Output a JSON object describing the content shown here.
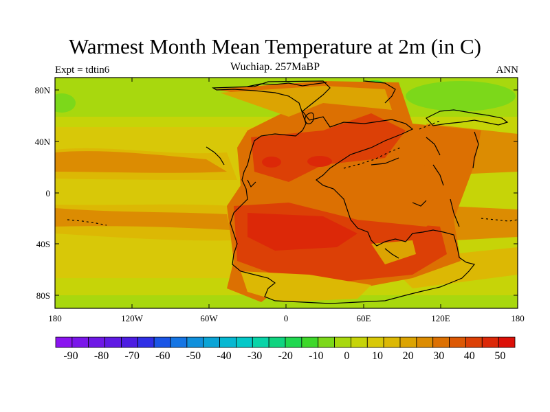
{
  "title": "Warmest Month Mean Temperature at 2m (in C)",
  "subtitle": "Wuchiap. 257MaBP",
  "left_label": "Expt = tdtin6",
  "right_label": "ANN",
  "map": {
    "x_ticks": [
      "180",
      "120W",
      "60W",
      "0",
      "60E",
      "120E",
      "180"
    ],
    "y_ticks": [
      "80N",
      "40N",
      "0",
      "40S",
      "80S"
    ]
  },
  "colorbar": {
    "labels": [
      "-90",
      "-80",
      "-70",
      "-60",
      "-50",
      "-40",
      "-30",
      "-20",
      "-10",
      "0",
      "10",
      "20",
      "30",
      "40",
      "50"
    ],
    "colors": [
      "#8a14f0",
      "#7a16ea",
      "#6e18e6",
      "#5f1ae4",
      "#4c1ce2",
      "#2f2fe6",
      "#1a55e6",
      "#1575e4",
      "#1090dc",
      "#0aa4d6",
      "#06b8d2",
      "#04c8c8",
      "#08d4a8",
      "#10d480",
      "#20d850",
      "#3ed82a",
      "#7cd81a",
      "#a8d80e",
      "#c6d408",
      "#d8c808",
      "#dcb804",
      "#dca402",
      "#dc8c02",
      "#dc7002",
      "#dc5804",
      "#dc4006",
      "#dc2808",
      "#dc1008"
    ]
  }
}
